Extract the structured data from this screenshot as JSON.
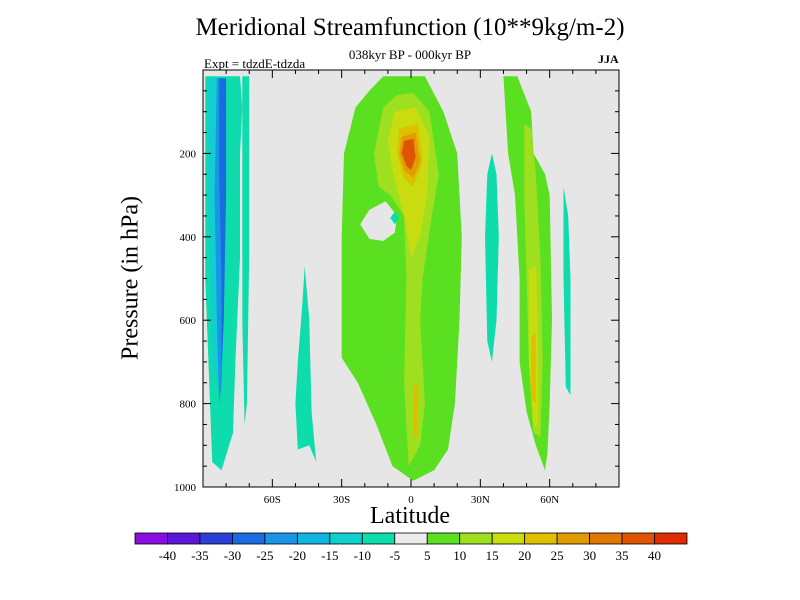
{
  "chart_data": {
    "type": "heatmap",
    "title": "Meridional Streamfunction (10**9kg/m-2)",
    "subtitle": "038kyr BP - 000kyr BP",
    "experiment": "Expt = tdzdE-tdzda",
    "season": "JJA",
    "xlabel": "Latitude",
    "ylabel": "Pressure (in hPa)",
    "xlim": [
      -90,
      90
    ],
    "ylim": [
      1000,
      0
    ],
    "x_ticks": [
      {
        "value": -60,
        "label": "60S"
      },
      {
        "value": -30,
        "label": "30S"
      },
      {
        "value": 0,
        "label": "0"
      },
      {
        "value": 30,
        "label": "30N"
      },
      {
        "value": 60,
        "label": "60N"
      }
    ],
    "y_ticks": [
      {
        "value": 200,
        "label": "200"
      },
      {
        "value": 400,
        "label": "400"
      },
      {
        "value": 600,
        "label": "600"
      },
      {
        "value": 800,
        "label": "800"
      },
      {
        "value": 1000,
        "label": "1000"
      }
    ],
    "background_color": "#e6e6e6",
    "colorbar": {
      "labels": [
        "-40",
        "-35",
        "-30",
        "-25",
        "-20",
        "-15",
        "-10",
        "-5",
        "5",
        "10",
        "15",
        "20",
        "25",
        "30",
        "35",
        "40"
      ],
      "colors": [
        "#8a0ee0",
        "#5a17d8",
        "#2a3fd8",
        "#1a6ae0",
        "#1a95e8",
        "#14b4e2",
        "#10cfcc",
        "#0edcac",
        "#ececec",
        "#5ae020",
        "#9ee020",
        "#c8dc10",
        "#e0be00",
        "#e09c00",
        "#e07800",
        "#e05400",
        "#dc2c00"
      ]
    },
    "regions": [
      {
        "name": "region-sh-outer-band",
        "level": -10,
        "color": "#0edcac",
        "points": [
          [
            -89,
            15
          ],
          [
            -74,
            15
          ],
          [
            -73,
            90
          ],
          [
            -74,
            200
          ],
          [
            -74,
            450
          ],
          [
            -76,
            700
          ],
          [
            -77,
            870
          ],
          [
            -82,
            960
          ],
          [
            -86,
            940
          ],
          [
            -89,
            500
          ]
        ]
      },
      {
        "name": "region-sh-mid-band",
        "level": -15,
        "color": "#10cfcc",
        "points": [
          [
            -88,
            20
          ],
          [
            -81,
            20
          ],
          [
            -81,
            300
          ],
          [
            -81,
            600
          ],
          [
            -82,
            780
          ],
          [
            -86,
            700
          ],
          [
            -88,
            300
          ]
        ]
      },
      {
        "name": "region-sh-inner-band",
        "level": -20,
        "color": "#1a95e8",
        "points": [
          [
            -84,
            20
          ],
          [
            -81,
            20
          ],
          [
            -80,
            250
          ],
          [
            -81,
            550
          ],
          [
            -82,
            760
          ],
          [
            -83,
            800
          ],
          [
            -84,
            600
          ],
          [
            -85,
            300
          ]
        ]
      },
      {
        "name": "region-sh-core",
        "level": -25,
        "color": "#1a6ae0",
        "points": [
          [
            -83,
            20
          ],
          [
            -80,
            20
          ],
          [
            -80,
            300
          ],
          [
            -81,
            600
          ],
          [
            -82,
            720
          ],
          [
            -82,
            500
          ],
          [
            -83,
            250
          ]
        ]
      },
      {
        "name": "region-sh-narrow-column",
        "level": -10,
        "color": "#0edcac",
        "points": [
          [
            -73,
            15
          ],
          [
            -70,
            15
          ],
          [
            -70,
            450
          ],
          [
            -71,
            800
          ],
          [
            -72,
            850
          ],
          [
            -73,
            600
          ]
        ]
      },
      {
        "name": "region-60s-column",
        "level": -10,
        "color": "#0edcac",
        "points": [
          [
            -47,
            560
          ],
          [
            -46,
            470
          ],
          [
            -44,
            600
          ],
          [
            -43,
            820
          ],
          [
            -41,
            940
          ],
          [
            -44,
            900
          ],
          [
            -49,
            910
          ],
          [
            -50,
            800
          ],
          [
            -49,
            700
          ]
        ]
      },
      {
        "name": "region-tropical-green",
        "level": 5,
        "color": "#5ae020",
        "points": [
          [
            -29,
            200
          ],
          [
            -24,
            90
          ],
          [
            -18,
            50
          ],
          [
            -12,
            15
          ],
          [
            6,
            15
          ],
          [
            14,
            100
          ],
          [
            20,
            200
          ],
          [
            22,
            400
          ],
          [
            21,
            600
          ],
          [
            19,
            800
          ],
          [
            16,
            910
          ],
          [
            10,
            960
          ],
          [
            1,
            985
          ],
          [
            -8,
            950
          ],
          [
            -15,
            850
          ],
          [
            -23,
            750
          ],
          [
            -30,
            690
          ],
          [
            -30,
            400
          ]
        ]
      },
      {
        "name": "region-tropical-yellow",
        "level": 10,
        "color": "#9ee020",
        "points": [
          [
            -12,
            90
          ],
          [
            -6,
            60
          ],
          [
            1,
            55
          ],
          [
            8,
            100
          ],
          [
            12,
            250
          ],
          [
            9,
            350
          ],
          [
            5,
            500
          ],
          [
            4,
            600
          ],
          [
            6,
            800
          ],
          [
            4,
            900
          ],
          [
            -1,
            950
          ],
          [
            -3,
            750
          ],
          [
            -2,
            500
          ],
          [
            -3,
            350
          ],
          [
            -9,
            300
          ],
          [
            -14,
            280
          ],
          [
            -16,
            200
          ]
        ]
      },
      {
        "name": "region-tropical-yellow-dark",
        "level": 15,
        "color": "#c8dc10",
        "points": [
          [
            -7,
            100
          ],
          [
            2,
            90
          ],
          [
            8,
            160
          ],
          [
            7,
            300
          ],
          [
            4,
            400
          ],
          [
            0,
            450
          ],
          [
            -3,
            350
          ],
          [
            -8,
            240
          ],
          [
            -10,
            170
          ]
        ]
      },
      {
        "name": "region-tropical-orange-light",
        "level": 20,
        "color": "#e0be00",
        "points": [
          [
            -5,
            140
          ],
          [
            3,
            130
          ],
          [
            5,
            220
          ],
          [
            1,
            280
          ],
          [
            -3,
            260
          ],
          [
            -6,
            200
          ]
        ]
      },
      {
        "name": "region-tropical-orange",
        "level": 25,
        "color": "#e09c00",
        "points": [
          [
            -4,
            160
          ],
          [
            2,
            150
          ],
          [
            4,
            220
          ],
          [
            1,
            260
          ],
          [
            -3,
            240
          ],
          [
            -5,
            200
          ]
        ]
      },
      {
        "name": "region-tropical-red",
        "level": 35,
        "color": "#e05400",
        "points": [
          [
            -3,
            170
          ],
          [
            1,
            165
          ],
          [
            2,
            210
          ],
          [
            0,
            240
          ],
          [
            -2,
            230
          ],
          [
            -4,
            200
          ]
        ]
      },
      {
        "name": "region-tropical-lower-yellow",
        "level": 10,
        "color": "#9ee020",
        "points": [
          [
            0,
            650
          ],
          [
            3,
            620
          ],
          [
            5,
            750
          ],
          [
            4,
            900
          ],
          [
            1,
            910
          ],
          [
            -1,
            800
          ]
        ]
      },
      {
        "name": "region-tropical-lower-orange",
        "level": 20,
        "color": "#e0be00",
        "points": [
          [
            1,
            760
          ],
          [
            3,
            750
          ],
          [
            3,
            880
          ],
          [
            1,
            880
          ]
        ]
      },
      {
        "name": "region-sh-hole",
        "level": 0,
        "color": "#e6e6e6",
        "points": [
          [
            -22,
            370
          ],
          [
            -18,
            335
          ],
          [
            -11,
            315
          ],
          [
            -6,
            350
          ],
          [
            -7,
            390
          ],
          [
            -12,
            410
          ],
          [
            -18,
            405
          ]
        ]
      },
      {
        "name": "region-small-cyan-spot",
        "level": -10,
        "color": "#0edcac",
        "points": [
          [
            -9,
            355
          ],
          [
            -7,
            340
          ],
          [
            -5,
            355
          ],
          [
            -7,
            370
          ]
        ]
      },
      {
        "name": "region-30n-column",
        "level": -10,
        "color": "#0edcac",
        "points": [
          [
            33,
            250
          ],
          [
            35,
            200
          ],
          [
            37,
            250
          ],
          [
            38,
            400
          ],
          [
            37,
            600
          ],
          [
            35,
            700
          ],
          [
            33,
            650
          ],
          [
            32,
            400
          ]
        ]
      },
      {
        "name": "region-nh-green",
        "level": 5,
        "color": "#5ae020",
        "points": [
          [
            40,
            15
          ],
          [
            46,
            15
          ],
          [
            52,
            100
          ],
          [
            53,
            200
          ],
          [
            58,
            250
          ],
          [
            60,
            300
          ],
          [
            61,
            600
          ],
          [
            60,
            800
          ],
          [
            59,
            920
          ],
          [
            58,
            960
          ],
          [
            54,
            900
          ],
          [
            50,
            820
          ],
          [
            47,
            700
          ],
          [
            47,
            500
          ],
          [
            45,
            300
          ],
          [
            42,
            200
          ]
        ]
      },
      {
        "name": "region-nh-yellow",
        "level": 10,
        "color": "#9ee020",
        "points": [
          [
            49,
            130
          ],
          [
            52,
            140
          ],
          [
            54,
            250
          ],
          [
            56,
            450
          ],
          [
            57,
            700
          ],
          [
            56,
            880
          ],
          [
            53,
            870
          ],
          [
            51,
            700
          ],
          [
            50,
            500
          ],
          [
            49,
            300
          ]
        ]
      },
      {
        "name": "region-nh-yellow-dark",
        "level": 15,
        "color": "#c8dc10",
        "points": [
          [
            51,
            480
          ],
          [
            54,
            470
          ],
          [
            55,
            650
          ],
          [
            55,
            850
          ],
          [
            53,
            860
          ],
          [
            51,
            700
          ]
        ]
      },
      {
        "name": "region-nh-orange",
        "level": 20,
        "color": "#e0be00",
        "points": [
          [
            52,
            640
          ],
          [
            54,
            630
          ],
          [
            54,
            800
          ],
          [
            52,
            790
          ]
        ]
      },
      {
        "name": "region-nh-cyan",
        "level": -10,
        "color": "#0edcac",
        "points": [
          [
            66,
            280
          ],
          [
            68,
            350
          ],
          [
            69,
            500
          ],
          [
            69,
            780
          ],
          [
            67,
            760
          ],
          [
            66,
            500
          ]
        ]
      }
    ]
  }
}
